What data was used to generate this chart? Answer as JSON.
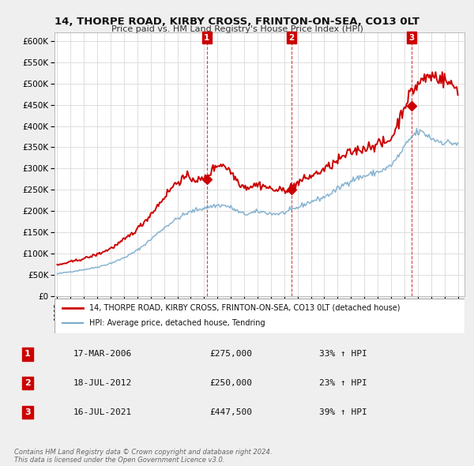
{
  "title": "14, THORPE ROAD, KIRBY CROSS, FRINTON-ON-SEA, CO13 0LT",
  "subtitle": "Price paid vs. HM Land Registry's House Price Index (HPI)",
  "ylim": [
    0,
    620000
  ],
  "yticks": [
    0,
    50000,
    100000,
    150000,
    200000,
    250000,
    300000,
    350000,
    400000,
    450000,
    500000,
    550000,
    600000
  ],
  "ytick_labels": [
    "£0",
    "£50K",
    "£100K",
    "£150K",
    "£200K",
    "£250K",
    "£300K",
    "£350K",
    "£400K",
    "£450K",
    "£500K",
    "£550K",
    "£600K"
  ],
  "sale_prices": [
    275000,
    250000,
    447500
  ],
  "sale_labels": [
    "1",
    "2",
    "3"
  ],
  "sale_year_decimals": [
    2006.208,
    2012.542,
    2021.542
  ],
  "red_color": "#cc0000",
  "blue_color": "#7aabcc",
  "legend_line1": "14, THORPE ROAD, KIRBY CROSS, FRINTON-ON-SEA, CO13 0LT (detached house)",
  "legend_line2": "HPI: Average price, detached house, Tendring",
  "table_data": [
    [
      "1",
      "17-MAR-2006",
      "£275,000",
      "33% ↑ HPI"
    ],
    [
      "2",
      "18-JUL-2012",
      "£250,000",
      "23% ↑ HPI"
    ],
    [
      "3",
      "16-JUL-2021",
      "£447,500",
      "39% ↑ HPI"
    ]
  ],
  "footer": "Contains HM Land Registry data © Crown copyright and database right 2024.\nThis data is licensed under the Open Government Licence v3.0.",
  "background_color": "#efefef",
  "plot_bg_color": "#ffffff",
  "grid_color": "#dddddd",
  "vline_color": "#cc0000",
  "hpi_key_years": [
    1995,
    1996,
    1997,
    1998,
    1999,
    2000,
    2001,
    2002,
    2003,
    2004,
    2005,
    2006,
    2007,
    2008,
    2009,
    2010,
    2011,
    2012,
    2013,
    2014,
    2015,
    2016,
    2017,
    2018,
    2019,
    2020,
    2021,
    2022,
    2023,
    2024,
    2025
  ],
  "hpi_key_vals": [
    52000,
    57000,
    62000,
    68000,
    77000,
    90000,
    108000,
    133000,
    160000,
    182000,
    198000,
    207000,
    213000,
    208000,
    193000,
    198000,
    194000,
    196000,
    208000,
    222000,
    233000,
    252000,
    272000,
    282000,
    292000,
    308000,
    350000,
    385000,
    372000,
    362000,
    358000
  ],
  "prop_key_years": [
    1995,
    1996,
    1997,
    1998,
    1999,
    2000,
    2001,
    2002,
    2003,
    2004,
    2005,
    2006,
    2007,
    2008,
    2009,
    2010,
    2011,
    2012,
    2013,
    2014,
    2015,
    2016,
    2017,
    2018,
    2019,
    2020,
    2021,
    2022,
    2023,
    2024,
    2025
  ],
  "prop_key_vals": [
    72000,
    80000,
    88000,
    98000,
    112000,
    132000,
    158000,
    192000,
    232000,
    268000,
    278000,
    275000,
    308000,
    292000,
    258000,
    262000,
    252000,
    250000,
    266000,
    282000,
    298000,
    318000,
    338000,
    348000,
    358000,
    372000,
    447500,
    498000,
    518000,
    508000,
    488000
  ],
  "noise_seed": 42,
  "hpi_noise": 0.013,
  "prop_noise": 0.018
}
